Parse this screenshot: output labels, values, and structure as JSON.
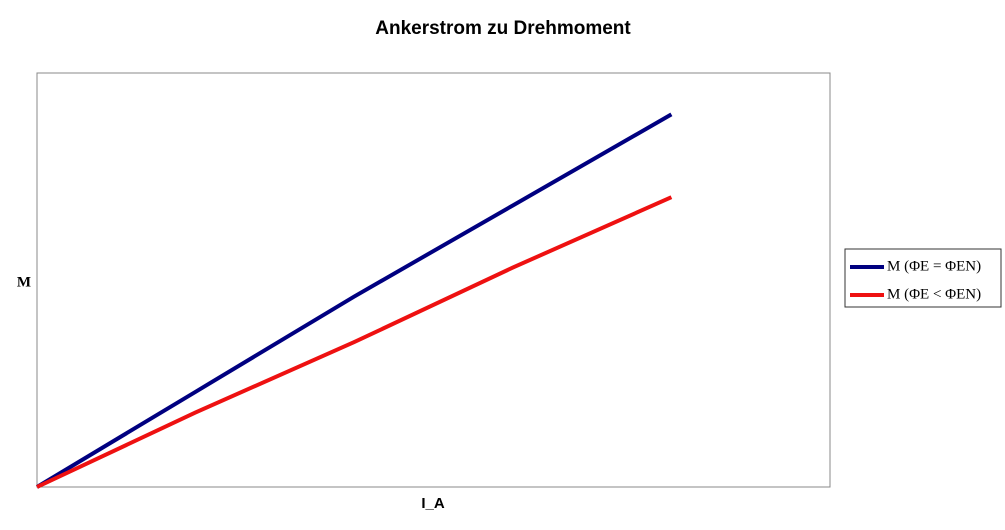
{
  "chart_data": {
    "type": "line",
    "title": "Ankerstrom zu Drehmoment",
    "x_label": "I_A",
    "y_label": "M",
    "x": [
      0,
      20,
      40,
      60,
      80
    ],
    "series": [
      {
        "name": "M (ΦE = ΦEN)",
        "color": "#000080",
        "values": [
          0,
          23,
          46,
          68,
          90
        ]
      },
      {
        "name": "M (ΦE < ΦEN)",
        "color": "#ee1111",
        "values": [
          0,
          18,
          35,
          53,
          70
        ]
      }
    ],
    "xlim": [
      0,
      100
    ],
    "ylim": [
      0,
      100
    ],
    "legend": "right"
  }
}
